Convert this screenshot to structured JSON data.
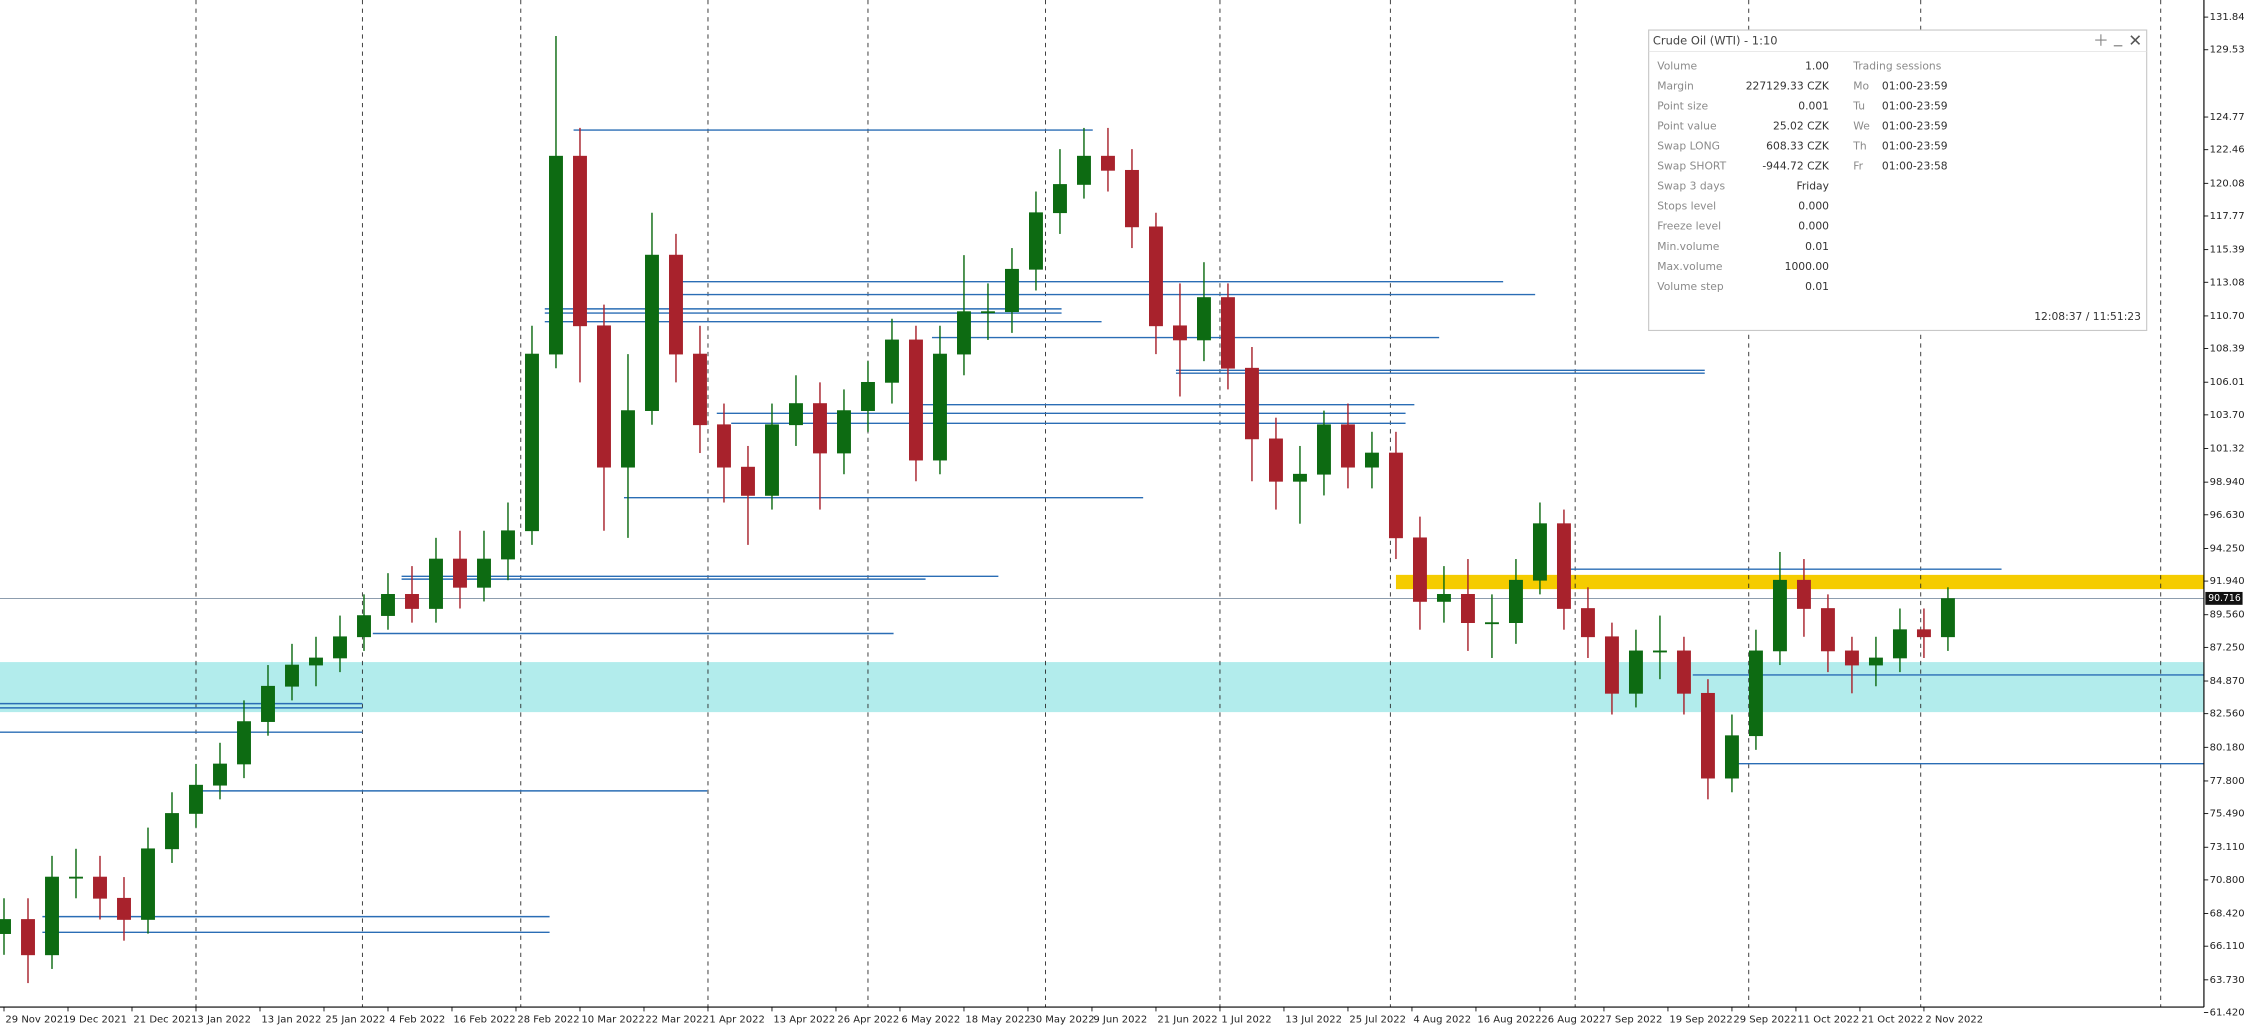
{
  "chart_data": {
    "type": "candlestick",
    "x": [
      0,
      3,
      6,
      9,
      12,
      15,
      18,
      21,
      24,
      27,
      30,
      33,
      36,
      39,
      42,
      45,
      48,
      51,
      54,
      57,
      60,
      63,
      66,
      69,
      72,
      75,
      78,
      81,
      84,
      87,
      90,
      93,
      96,
      99,
      102,
      105,
      108,
      111,
      114,
      117,
      120,
      123,
      126,
      129,
      132,
      135,
      138,
      141,
      144,
      147,
      150,
      153,
      156,
      159,
      162,
      165,
      168,
      171,
      174,
      177,
      180,
      183,
      186,
      189,
      192,
      195,
      198,
      201,
      204,
      207,
      210,
      213,
      216,
      219,
      222,
      225,
      228,
      231,
      234,
      237,
      240,
      243
    ],
    "open": [
      67,
      68,
      65.5,
      71,
      71,
      69.5,
      68,
      73,
      75.5,
      77.5,
      79,
      82,
      84.5,
      86,
      86.5,
      88,
      89.5,
      91,
      90,
      93.5,
      91.5,
      93.5,
      95.5,
      108,
      122,
      110,
      100,
      104,
      115,
      108,
      103,
      100,
      98,
      103,
      104.5,
      101,
      104,
      106,
      109,
      100.5,
      108,
      111,
      111,
      114,
      118,
      120,
      122,
      121,
      117,
      110,
      109,
      112,
      107,
      102,
      99,
      99.5,
      103,
      100,
      101,
      95,
      90.5,
      91,
      89,
      89,
      92,
      96,
      90,
      88,
      84,
      87,
      87,
      84,
      78,
      81,
      87,
      92,
      90,
      87,
      86,
      86.5,
      88.5,
      88
    ],
    "high": [
      69.5,
      69.5,
      72.5,
      73,
      72.5,
      71,
      74.5,
      77,
      79,
      80.5,
      83.5,
      86,
      87.5,
      88,
      89.5,
      91,
      92.5,
      93,
      95,
      95.5,
      95.5,
      97.5,
      110,
      130.5,
      124,
      111.5,
      108,
      118,
      116.5,
      110,
      104.5,
      101.5,
      104.5,
      106.5,
      106,
      105.5,
      107.5,
      110.5,
      110,
      110,
      115,
      113,
      115.5,
      119.5,
      122.5,
      124,
      124,
      122.5,
      118,
      113,
      114.5,
      113,
      108.5,
      103.5,
      101.5,
      104,
      104.5,
      102.5,
      102.5,
      96.5,
      93,
      93.5,
      91,
      93.5,
      97.5,
      97,
      91.5,
      89,
      88.5,
      89.5,
      88,
      85,
      82.5,
      88.5,
      94,
      93.5,
      91,
      88,
      88,
      90,
      90,
      91.5
    ],
    "low": [
      65.5,
      63.5,
      64.5,
      69.5,
      68,
      66.5,
      67,
      72,
      74.5,
      76.5,
      78,
      81,
      83.5,
      84.5,
      85.5,
      87,
      88.5,
      89,
      89,
      90,
      90.5,
      92,
      94.5,
      107,
      106,
      95.5,
      95,
      103,
      106,
      101,
      97.5,
      94.5,
      97,
      101.5,
      97,
      99.5,
      102.5,
      104.5,
      99,
      99.5,
      106.5,
      109,
      109.5,
      112.5,
      116.5,
      119,
      119.5,
      115.5,
      108,
      105,
      107.5,
      105.5,
      99,
      97,
      96,
      98,
      98.5,
      98.5,
      93.5,
      88.5,
      89,
      87,
      86.5,
      87.5,
      91,
      88.5,
      86.5,
      82.5,
      83,
      85,
      82.5,
      76.5,
      77,
      80,
      86,
      88,
      85.5,
      84,
      84.5,
      85.5,
      86.5,
      87
    ],
    "close": [
      68,
      65.5,
      71,
      71,
      69.5,
      68,
      73,
      75.5,
      77.5,
      79,
      82,
      84.5,
      86,
      86.5,
      88,
      89.5,
      91,
      90,
      93.5,
      91.5,
      93.5,
      95.5,
      108,
      122,
      110,
      100,
      104,
      115,
      108,
      103,
      100,
      98,
      103,
      104.5,
      101,
      104,
      106,
      109,
      100.5,
      108,
      111,
      111,
      114,
      118,
      120,
      122,
      121,
      117,
      110,
      109,
      112,
      107,
      102,
      99,
      99.5,
      103,
      100,
      101,
      95,
      90.5,
      91,
      89,
      89,
      92,
      96,
      90,
      88,
      84,
      87,
      87,
      84,
      78,
      81,
      87,
      92,
      90,
      87,
      86,
      86.5,
      88.5,
      88,
      90.7
    ],
    "up_color": "#0d6b12",
    "down_color": "#a8222c",
    "xlim": [
      -0.5,
      275
    ],
    "xticks": [
      {
        "value": 0,
        "label": "29 Nov 2021"
      },
      {
        "value": 8,
        "label": "9 Dec 2021"
      },
      {
        "value": 16,
        "label": "21 Dec 2021"
      },
      {
        "value": 24,
        "label": "3 Jan 2022"
      },
      {
        "value": 32,
        "label": "13 Jan 2022"
      },
      {
        "value": 40,
        "label": "25 Jan 2022"
      },
      {
        "value": 48,
        "label": "4 Feb 2022"
      },
      {
        "value": 56,
        "label": "16 Feb 2022"
      },
      {
        "value": 64,
        "label": "28 Feb 2022"
      },
      {
        "value": 72,
        "label": "10 Mar 2022"
      },
      {
        "value": 80,
        "label": "22 Mar 2022"
      },
      {
        "value": 88,
        "label": "1 Apr 2022"
      },
      {
        "value": 96,
        "label": "13 Apr 2022"
      },
      {
        "value": 104,
        "label": "26 Apr 2022"
      },
      {
        "value": 112,
        "label": "6 May 2022"
      },
      {
        "value": 120,
        "label": "18 May 2022"
      },
      {
        "value": 128,
        "label": "30 May 2022"
      },
      {
        "value": 136,
        "label": "9 Jun 2022"
      },
      {
        "value": 144,
        "label": "21 Jun 2022"
      },
      {
        "value": 152,
        "label": "1 Jul 2022"
      },
      {
        "value": 160,
        "label": "13 Jul 2022"
      },
      {
        "value": 168,
        "label": "25 Jul 2022"
      },
      {
        "value": 176,
        "label": "4 Aug 2022"
      },
      {
        "value": 184,
        "label": "16 Aug 2022"
      },
      {
        "value": 192,
        "label": "26 Aug 2022"
      },
      {
        "value": 200,
        "label": "7 Sep 2022"
      },
      {
        "value": 208,
        "label": "19 Sep 2022"
      },
      {
        "value": 216,
        "label": "29 Sep 2022"
      },
      {
        "value": 224,
        "label": "11 Oct 2022"
      },
      {
        "value": 232,
        "label": "21 Oct 2022"
      },
      {
        "value": 240,
        "label": "2 Nov 2022"
      }
    ],
    "ylim": [
      61.8,
      133.05
    ],
    "yticks": [
      {
        "value": 131.84,
        "label": "131.840"
      },
      {
        "value": 129.53,
        "label": "129.530"
      },
      {
        "value": 124.77,
        "label": "124.770"
      },
      {
        "value": 122.46,
        "label": "122.460"
      },
      {
        "value": 120.08,
        "label": "120.080"
      },
      {
        "value": 117.77,
        "label": "117.770"
      },
      {
        "value": 115.39,
        "label": "115.390"
      },
      {
        "value": 113.08,
        "label": "113.080"
      },
      {
        "value": 110.7,
        "label": "110.700"
      },
      {
        "value": 108.39,
        "label": "108.390"
      },
      {
        "value": 106.01,
        "label": "106.010"
      },
      {
        "value": 103.7,
        "label": "103.700"
      },
      {
        "value": 101.32,
        "label": "101.320"
      },
      {
        "value": 98.94,
        "label": "98.940"
      },
      {
        "value": 96.63,
        "label": "96.630"
      },
      {
        "value": 94.25,
        "label": "94.250"
      },
      {
        "value": 91.94,
        "label": "91.940"
      },
      {
        "value": 89.56,
        "label": "89.560"
      },
      {
        "value": 87.25,
        "label": "87.250"
      },
      {
        "value": 84.87,
        "label": "84.870"
      },
      {
        "value": 82.56,
        "label": "82.560"
      },
      {
        "value": 80.18,
        "label": "80.180"
      },
      {
        "value": 77.8,
        "label": "77.800"
      },
      {
        "value": 75.49,
        "label": "75.490"
      },
      {
        "value": 73.11,
        "label": "73.110"
      },
      {
        "value": 70.8,
        "label": "70.800"
      },
      {
        "value": 68.42,
        "label": "68.420"
      },
      {
        "value": 66.11,
        "label": "66.110"
      },
      {
        "value": 63.73,
        "label": "63.730"
      },
      {
        "value": 61.42,
        "label": "61.420"
      }
    ],
    "levels": [
      {
        "price": 123.85,
        "from": 71.2,
        "to": 136.1
      },
      {
        "price": 113.12,
        "from": 83.8,
        "to": 187.4
      },
      {
        "price": 112.21,
        "from": 83.8,
        "to": 191.4
      },
      {
        "price": 111.2,
        "from": 67.6,
        "to": 132.2
      },
      {
        "price": 110.9,
        "from": 67.6,
        "to": 132.2
      },
      {
        "price": 110.29,
        "from": 67.6,
        "to": 137.2
      },
      {
        "price": 109.17,
        "from": 116,
        "to": 179.4
      },
      {
        "price": 106.85,
        "from": 146.5,
        "to": 212.6
      },
      {
        "price": 106.65,
        "from": 146.5,
        "to": 212.6
      },
      {
        "price": 104.42,
        "from": 114.3,
        "to": 176.3
      },
      {
        "price": 103.81,
        "from": 89.1,
        "to": 175.2
      },
      {
        "price": 103.1,
        "from": 90.9,
        "to": 175.2
      },
      {
        "price": 97.84,
        "from": 77.5,
        "to": 142.4
      },
      {
        "price": 92.78,
        "from": 195,
        "to": 249.7
      },
      {
        "price": 92.28,
        "from": 49.7,
        "to": 124.3
      },
      {
        "price": 92.08,
        "from": 49.7,
        "to": 115.2
      },
      {
        "price": 88.23,
        "from": 46.1,
        "to": 111.2
      },
      {
        "price": 85.3,
        "from": 211.1,
        "to": 275
      },
      {
        "price": 83.27,
        "from": -0.5,
        "to": 44.8
      },
      {
        "price": 82.97,
        "from": -0.5,
        "to": 44.8
      },
      {
        "price": 81.25,
        "from": -0.5,
        "to": 44.8
      },
      {
        "price": 79.02,
        "from": 215.6,
        "to": 275
      },
      {
        "price": 77.1,
        "from": 24.6,
        "to": 87.9
      },
      {
        "price": 68.2,
        "from": 4.8,
        "to": 68.2
      },
      {
        "price": 67.09,
        "from": 4.8,
        "to": 68.2
      }
    ],
    "level_color": "#2a6db5",
    "zones": [
      {
        "low": 82.67,
        "high": 86.21,
        "from": -0.5,
        "to": 275,
        "color": "#b2ecec"
      },
      {
        "low": 91.37,
        "high": 92.38,
        "from": 174,
        "to": 275,
        "color": "#f5cc00"
      }
    ],
    "period_separators": [
      24,
      44.8,
      64.6,
      88,
      108,
      130.2,
      152,
      173.3,
      196.4,
      218.1,
      239.6,
      269.6
    ],
    "current_price": 90.716
  },
  "info_panel": {
    "title": "Crude Oil (WTI) - 1:10",
    "rows": [
      {
        "label": "Volume",
        "value": "1.00"
      },
      {
        "label": "Margin",
        "value": "227129.33 CZK"
      },
      {
        "label": "Point size",
        "value": "0.001"
      },
      {
        "label": "Point value",
        "value": "25.02 CZK"
      },
      {
        "label": "Swap LONG",
        "value": "608.33 CZK"
      },
      {
        "label": "Swap SHORT",
        "value": "-944.72 CZK"
      },
      {
        "label": "Swap 3 days",
        "value": "Friday"
      },
      {
        "label": "Stops level",
        "value": "0.000"
      },
      {
        "label": "Freeze level",
        "value": "0.000"
      },
      {
        "label": "Min.volume",
        "value": "0.01"
      },
      {
        "label": "Max.volume",
        "value": "1000.00"
      },
      {
        "label": "Volume step",
        "value": "0.01"
      }
    ],
    "sessions_title": "Trading sessions",
    "sessions": [
      {
        "day": "Mo",
        "hours": "01:00-23:59"
      },
      {
        "day": "Tu",
        "hours": "01:00-23:59"
      },
      {
        "day": "We",
        "hours": "01:00-23:59"
      },
      {
        "day": "Th",
        "hours": "01:00-23:59"
      },
      {
        "day": "Fr",
        "hours": "01:00-23:58"
      }
    ],
    "time": "12:08:37 / 11:51:23"
  }
}
